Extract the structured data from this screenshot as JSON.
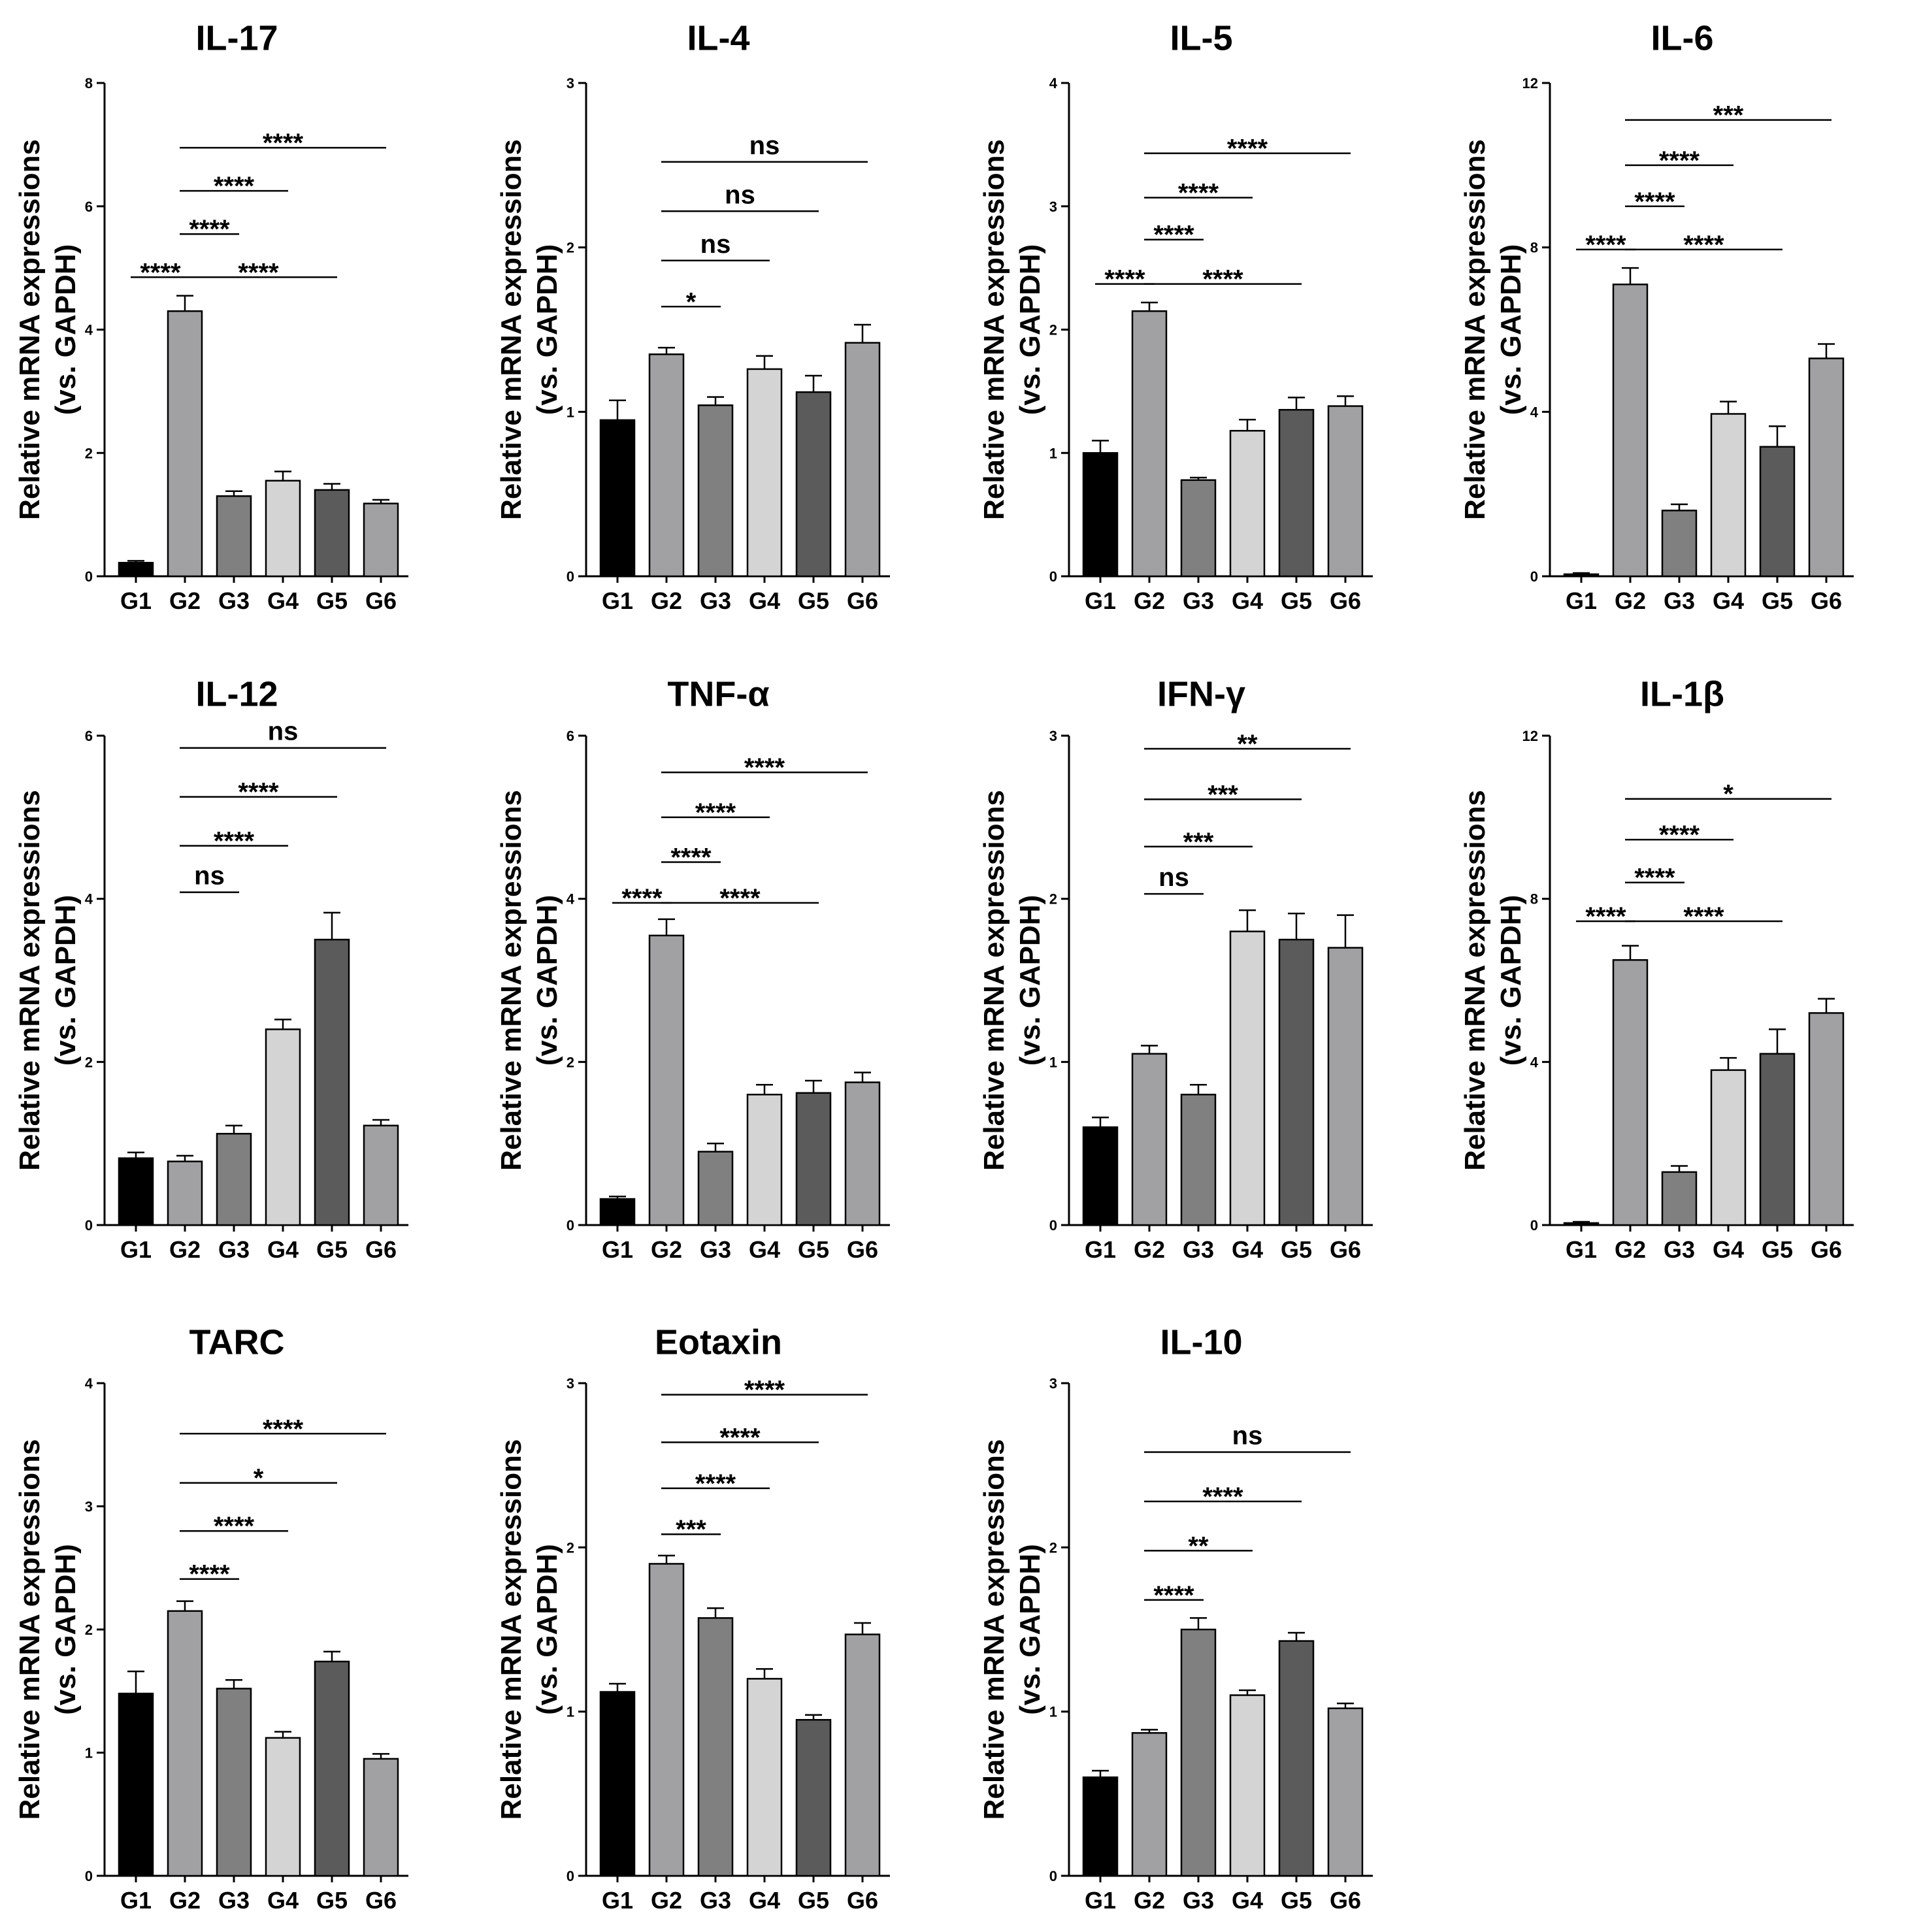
{
  "figure": {
    "groups": [
      "G1",
      "G2",
      "G3",
      "G4",
      "G5",
      "G6"
    ],
    "ylabel_line1": "Relative mRNA expressions",
    "ylabel_line2": "(vs. GAPDH)",
    "bar_colors": [
      "#000000",
      "#a1a1a4",
      "#808080",
      "#d4d4d4",
      "#5b5b5b",
      "#a1a1a4"
    ]
  },
  "chart_data": [
    {
      "type": "bar",
      "title": "IL-17",
      "categories": [
        "G1",
        "G2",
        "G3",
        "G4",
        "G5",
        "G6"
      ],
      "values": [
        0.22,
        4.3,
        1.3,
        1.55,
        1.4,
        1.18
      ],
      "errors": [
        0.03,
        0.25,
        0.08,
        0.15,
        0.1,
        0.06
      ],
      "ylim": [
        0,
        8
      ],
      "yticks": [
        0,
        2,
        4,
        6,
        8
      ],
      "significance": [
        {
          "from": "G2",
          "to": "G6",
          "label": "****",
          "y": 6.95
        },
        {
          "from": "G2",
          "to": "G4",
          "label": "****",
          "y": 6.25
        },
        {
          "from": "G2",
          "to": "G3",
          "label": "****",
          "y": 5.55
        },
        {
          "from": "G1",
          "to": "G2",
          "label": "****",
          "y": 4.85
        },
        {
          "from": "G2",
          "to": "G5",
          "label": "****",
          "y": 4.85
        }
      ]
    },
    {
      "type": "bar",
      "title": "IL-4",
      "categories": [
        "G1",
        "G2",
        "G3",
        "G4",
        "G5",
        "G6"
      ],
      "values": [
        0.95,
        1.35,
        1.04,
        1.26,
        1.12,
        1.42
      ],
      "errors": [
        0.12,
        0.04,
        0.05,
        0.08,
        0.1,
        0.11
      ],
      "ylim": [
        0,
        3
      ],
      "yticks": [
        0,
        1,
        2,
        3
      ],
      "significance": [
        {
          "from": "G2",
          "to": "G6",
          "label": "ns",
          "y": 2.52
        },
        {
          "from": "G2",
          "to": "G5",
          "label": "ns",
          "y": 2.22
        },
        {
          "from": "G2",
          "to": "G4",
          "label": "ns",
          "y": 1.92
        },
        {
          "from": "G2",
          "to": "G3",
          "label": "*",
          "y": 1.64
        }
      ]
    },
    {
      "type": "bar",
      "title": "IL-5",
      "categories": [
        "G1",
        "G2",
        "G3",
        "G4",
        "G5",
        "G6"
      ],
      "values": [
        1.0,
        2.15,
        0.78,
        1.18,
        1.35,
        1.38
      ],
      "errors": [
        0.1,
        0.07,
        0.02,
        0.09,
        0.1,
        0.08
      ],
      "ylim": [
        0,
        4
      ],
      "yticks": [
        0,
        1,
        2,
        3,
        4
      ],
      "significance": [
        {
          "from": "G2",
          "to": "G6",
          "label": "****",
          "y": 3.43
        },
        {
          "from": "G2",
          "to": "G4",
          "label": "****",
          "y": 3.07
        },
        {
          "from": "G2",
          "to": "G3",
          "label": "****",
          "y": 2.73
        },
        {
          "from": "G1",
          "to": "G2",
          "label": "****",
          "y": 2.37
        },
        {
          "from": "G2",
          "to": "G5",
          "label": "****",
          "y": 2.37
        }
      ]
    },
    {
      "type": "bar",
      "title": "IL-6",
      "categories": [
        "G1",
        "G2",
        "G3",
        "G4",
        "G5",
        "G6"
      ],
      "values": [
        0.05,
        7.1,
        1.6,
        3.95,
        3.15,
        5.3
      ],
      "errors": [
        0.03,
        0.4,
        0.15,
        0.3,
        0.5,
        0.35
      ],
      "ylim": [
        0,
        12
      ],
      "yticks": [
        0,
        4,
        8,
        12
      ],
      "significance": [
        {
          "from": "G2",
          "to": "G6",
          "label": "***",
          "y": 11.1
        },
        {
          "from": "G2",
          "to": "G4",
          "label": "****",
          "y": 10.0
        },
        {
          "from": "G2",
          "to": "G3",
          "label": "****",
          "y": 9.0
        },
        {
          "from": "G1",
          "to": "G2",
          "label": "****",
          "y": 7.95
        },
        {
          "from": "G2",
          "to": "G5",
          "label": "****",
          "y": 7.95
        }
      ]
    },
    {
      "type": "bar",
      "title": "IL-12",
      "categories": [
        "G1",
        "G2",
        "G3",
        "G4",
        "G5",
        "G6"
      ],
      "values": [
        0.82,
        0.78,
        1.12,
        2.4,
        3.5,
        1.22
      ],
      "errors": [
        0.07,
        0.07,
        0.1,
        0.12,
        0.33,
        0.07
      ],
      "ylim": [
        0,
        6
      ],
      "yticks": [
        0,
        2,
        4,
        6
      ],
      "significance": [
        {
          "from": "G2",
          "to": "G6",
          "label": "ns",
          "y": 5.85
        },
        {
          "from": "G2",
          "to": "G5",
          "label": "****",
          "y": 5.25
        },
        {
          "from": "G2",
          "to": "G4",
          "label": "****",
          "y": 4.65
        },
        {
          "from": "G2",
          "to": "G3",
          "label": "ns",
          "y": 4.08
        }
      ]
    },
    {
      "type": "bar",
      "title": "TNF-α",
      "categories": [
        "G1",
        "G2",
        "G3",
        "G4",
        "G5",
        "G6"
      ],
      "values": [
        0.32,
        3.55,
        0.9,
        1.6,
        1.62,
        1.75
      ],
      "errors": [
        0.03,
        0.2,
        0.1,
        0.12,
        0.15,
        0.12
      ],
      "ylim": [
        0,
        6
      ],
      "yticks": [
        0,
        2,
        4,
        6
      ],
      "significance": [
        {
          "from": "G2",
          "to": "G6",
          "label": "****",
          "y": 5.55
        },
        {
          "from": "G2",
          "to": "G4",
          "label": "****",
          "y": 5.0
        },
        {
          "from": "G2",
          "to": "G3",
          "label": "****",
          "y": 4.45
        },
        {
          "from": "G1",
          "to": "G2",
          "label": "****",
          "y": 3.95
        },
        {
          "from": "G2",
          "to": "G5",
          "label": "****",
          "y": 3.95
        }
      ]
    },
    {
      "type": "bar",
      "title": "IFN-γ",
      "categories": [
        "G1",
        "G2",
        "G3",
        "G4",
        "G5",
        "G6"
      ],
      "values": [
        0.6,
        1.05,
        0.8,
        1.8,
        1.75,
        1.7
      ],
      "errors": [
        0.06,
        0.05,
        0.06,
        0.13,
        0.16,
        0.2
      ],
      "ylim": [
        0,
        3
      ],
      "yticks": [
        0,
        1,
        2,
        3
      ],
      "significance": [
        {
          "from": "G2",
          "to": "G6",
          "label": "**",
          "y": 2.92
        },
        {
          "from": "G2",
          "to": "G5",
          "label": "***",
          "y": 2.61
        },
        {
          "from": "G2",
          "to": "G4",
          "label": "***",
          "y": 2.32
        },
        {
          "from": "G2",
          "to": "G3",
          "label": "ns",
          "y": 2.03
        }
      ]
    },
    {
      "type": "bar",
      "title": "IL-1β",
      "categories": [
        "G1",
        "G2",
        "G3",
        "G4",
        "G5",
        "G6"
      ],
      "values": [
        0.05,
        6.5,
        1.3,
        3.8,
        4.2,
        5.2
      ],
      "errors": [
        0.03,
        0.35,
        0.15,
        0.3,
        0.6,
        0.35
      ],
      "ylim": [
        0,
        12
      ],
      "yticks": [
        0,
        4,
        8,
        12
      ],
      "significance": [
        {
          "from": "G2",
          "to": "G6",
          "label": "*",
          "y": 10.45
        },
        {
          "from": "G2",
          "to": "G4",
          "label": "****",
          "y": 9.45
        },
        {
          "from": "G2",
          "to": "G3",
          "label": "****",
          "y": 8.4
        },
        {
          "from": "G1",
          "to": "G2",
          "label": "****",
          "y": 7.45
        },
        {
          "from": "G2",
          "to": "G5",
          "label": "****",
          "y": 7.45
        }
      ]
    },
    {
      "type": "bar",
      "title": "TARC",
      "categories": [
        "G1",
        "G2",
        "G3",
        "G4",
        "G5",
        "G6"
      ],
      "values": [
        1.48,
        2.15,
        1.52,
        1.12,
        1.74,
        0.95
      ],
      "errors": [
        0.18,
        0.08,
        0.07,
        0.05,
        0.08,
        0.04
      ],
      "ylim": [
        0,
        4
      ],
      "yticks": [
        0,
        1,
        2,
        3,
        4
      ],
      "significance": [
        {
          "from": "G2",
          "to": "G6",
          "label": "****",
          "y": 3.59
        },
        {
          "from": "G2",
          "to": "G5",
          "label": "*",
          "y": 3.19
        },
        {
          "from": "G2",
          "to": "G4",
          "label": "****",
          "y": 2.8
        },
        {
          "from": "G2",
          "to": "G3",
          "label": "****",
          "y": 2.41
        }
      ]
    },
    {
      "type": "bar",
      "title": "Eotaxin",
      "categories": [
        "G1",
        "G2",
        "G3",
        "G4",
        "G5",
        "G6"
      ],
      "values": [
        1.12,
        1.9,
        1.57,
        1.2,
        0.95,
        1.47
      ],
      "errors": [
        0.05,
        0.05,
        0.06,
        0.06,
        0.03,
        0.07
      ],
      "ylim": [
        0,
        3
      ],
      "yticks": [
        0,
        1,
        2,
        3
      ],
      "significance": [
        {
          "from": "G2",
          "to": "G6",
          "label": "****",
          "y": 2.93
        },
        {
          "from": "G2",
          "to": "G5",
          "label": "****",
          "y": 2.64
        },
        {
          "from": "G2",
          "to": "G4",
          "label": "****",
          "y": 2.36
        },
        {
          "from": "G2",
          "to": "G3",
          "label": "***",
          "y": 2.08
        }
      ]
    },
    {
      "type": "bar",
      "title": "IL-10",
      "categories": [
        "G1",
        "G2",
        "G3",
        "G4",
        "G5",
        "G6"
      ],
      "values": [
        0.6,
        0.87,
        1.5,
        1.1,
        1.43,
        1.02
      ],
      "errors": [
        0.04,
        0.02,
        0.07,
        0.03,
        0.05,
        0.03
      ],
      "ylim": [
        0,
        3
      ],
      "yticks": [
        0,
        1,
        2,
        3
      ],
      "significance": [
        {
          "from": "G2",
          "to": "G6",
          "label": "ns",
          "y": 2.58
        },
        {
          "from": "G2",
          "to": "G5",
          "label": "****",
          "y": 2.28
        },
        {
          "from": "G2",
          "to": "G4",
          "label": "**",
          "y": 1.98
        },
        {
          "from": "G2",
          "to": "G3",
          "label": "****",
          "y": 1.68
        }
      ]
    }
  ]
}
